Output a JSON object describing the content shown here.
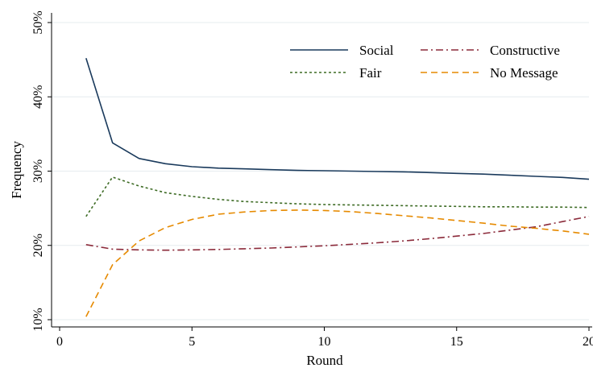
{
  "chart_data": {
    "type": "line",
    "xlabel": "Round",
    "ylabel": "Frequency",
    "xlim": [
      0,
      20
    ],
    "ylim": [
      10,
      50
    ],
    "x_ticks": [
      "0",
      "5",
      "10",
      "15",
      "20"
    ],
    "y_ticks": [
      "10%",
      "20%",
      "30%",
      "40%",
      "50%"
    ],
    "x_tick_values": [
      0,
      5,
      10,
      15,
      20
    ],
    "y_tick_values": [
      10,
      20,
      30,
      40,
      50
    ],
    "grid": true,
    "legend_position": "top-right",
    "x": [
      1,
      2,
      3,
      4,
      5,
      6,
      7,
      8,
      9,
      10,
      11,
      12,
      13,
      14,
      15,
      16,
      17,
      18,
      19,
      20
    ],
    "series": [
      {
        "name": "Social",
        "color": "#1a3a5c",
        "dash": "solid",
        "values": [
          45.2,
          33.8,
          31.7,
          31.0,
          30.6,
          30.4,
          30.3,
          30.2,
          30.1,
          30.05,
          30.0,
          29.95,
          29.9,
          29.8,
          29.7,
          29.6,
          29.45,
          29.3,
          29.15,
          28.9
        ]
      },
      {
        "name": "Constructive",
        "color": "#8b2a3a",
        "dash": "dashdot",
        "values": [
          20.1,
          19.5,
          19.4,
          19.35,
          19.4,
          19.45,
          19.55,
          19.65,
          19.8,
          19.95,
          20.15,
          20.35,
          20.6,
          20.9,
          21.25,
          21.6,
          22.05,
          22.5,
          23.2,
          23.9
        ]
      },
      {
        "name": "Fair",
        "color": "#3d6b24",
        "dash": "dotted",
        "values": [
          23.9,
          29.2,
          28.0,
          27.1,
          26.6,
          26.2,
          25.9,
          25.75,
          25.6,
          25.5,
          25.45,
          25.4,
          25.35,
          25.3,
          25.25,
          25.2,
          25.2,
          25.15,
          25.15,
          25.1
        ]
      },
      {
        "name": "No Message",
        "color": "#e68a00",
        "dash": "dashed",
        "values": [
          10.4,
          17.4,
          20.6,
          22.4,
          23.5,
          24.2,
          24.5,
          24.7,
          24.75,
          24.7,
          24.55,
          24.3,
          24.0,
          23.7,
          23.35,
          23.0,
          22.6,
          22.3,
          21.95,
          21.5
        ]
      }
    ]
  }
}
